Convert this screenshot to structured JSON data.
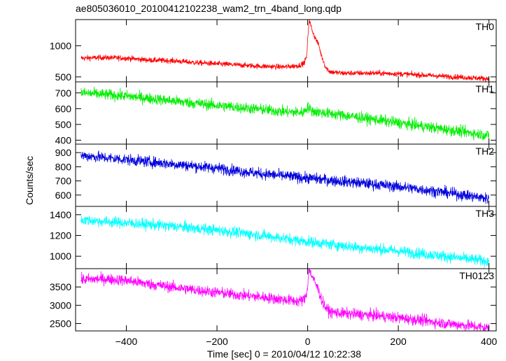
{
  "chart_data": {
    "type": "line",
    "title": "ae805036010_20100412102238_wam2_trn_4band_long.qdp",
    "xlabel": "Time [sec] 0 = 2010/04/12 10:22:38",
    "ylabel": "Counts/sec",
    "xlim": [
      -512,
      416
    ],
    "x_ticks": [
      -400,
      -200,
      0,
      200,
      400
    ],
    "grid": false,
    "panels": [
      {
        "name": "TH0",
        "color": "#ff0000",
        "ylim": [
          420,
          1420
        ],
        "y_ticks": [
          500,
          1000
        ],
        "series": {
          "x": [
            -500,
            -450,
            -400,
            -350,
            -300,
            -250,
            -200,
            -150,
            -100,
            -50,
            -20,
            -8,
            -2,
            0,
            3,
            6,
            10,
            15,
            20,
            25,
            30,
            40,
            50,
            75,
            100,
            150,
            200,
            250,
            300,
            350,
            400
          ],
          "y": [
            800,
            810,
            800,
            770,
            760,
            730,
            710,
            690,
            670,
            660,
            680,
            720,
            830,
            1080,
            1420,
            1350,
            1250,
            1150,
            1080,
            1000,
            850,
            650,
            580,
            560,
            560,
            560,
            550,
            530,
            510,
            490,
            470
          ]
        }
      },
      {
        "name": "TH1",
        "color": "#00ee00",
        "ylim": [
          375,
          770
        ],
        "y_ticks": [
          400,
          500,
          600,
          700
        ],
        "series": {
          "x": [
            -500,
            -400,
            -300,
            -200,
            -100,
            -50,
            -10,
            0,
            10,
            30,
            60,
            100,
            200,
            300,
            400
          ],
          "y": [
            700,
            680,
            650,
            620,
            595,
            580,
            575,
            610,
            585,
            575,
            565,
            550,
            510,
            470,
            430
          ]
        }
      },
      {
        "name": "TH2",
        "color": "#0000dd",
        "ylim": [
          520,
          960
        ],
        "y_ticks": [
          600,
          700,
          800,
          900
        ],
        "series": {
          "x": [
            -500,
            -400,
            -300,
            -200,
            -100,
            0,
            100,
            200,
            300,
            400
          ],
          "y": [
            880,
            850,
            820,
            790,
            750,
            720,
            690,
            660,
            620,
            575
          ]
        }
      },
      {
        "name": "TH3",
        "color": "#00ffff",
        "ylim": [
          880,
          1480
        ],
        "y_ticks": [
          1000,
          1200,
          1400
        ],
        "series": {
          "x": [
            -500,
            -400,
            -300,
            -200,
            -100,
            0,
            100,
            200,
            300,
            400
          ],
          "y": [
            1350,
            1320,
            1290,
            1250,
            1200,
            1140,
            1090,
            1050,
            1000,
            950
          ]
        }
      },
      {
        "name": "TH0123",
        "color": "#ff00ff",
        "ylim": [
          2300,
          4000
        ],
        "y_ticks": [
          2500,
          3000,
          3500
        ],
        "series": {
          "x": [
            -500,
            -450,
            -400,
            -350,
            -300,
            -250,
            -200,
            -150,
            -100,
            -50,
            -20,
            -8,
            -2,
            0,
            3,
            6,
            10,
            15,
            20,
            25,
            30,
            40,
            50,
            75,
            100,
            150,
            200,
            250,
            300,
            350,
            400
          ],
          "y": [
            3700,
            3720,
            3680,
            3580,
            3500,
            3420,
            3350,
            3280,
            3220,
            3150,
            3110,
            3150,
            3320,
            3560,
            4000,
            3900,
            3780,
            3650,
            3520,
            3380,
            3180,
            2920,
            2820,
            2780,
            2760,
            2720,
            2660,
            2590,
            2510,
            2450,
            2380
          ]
        }
      }
    ]
  }
}
